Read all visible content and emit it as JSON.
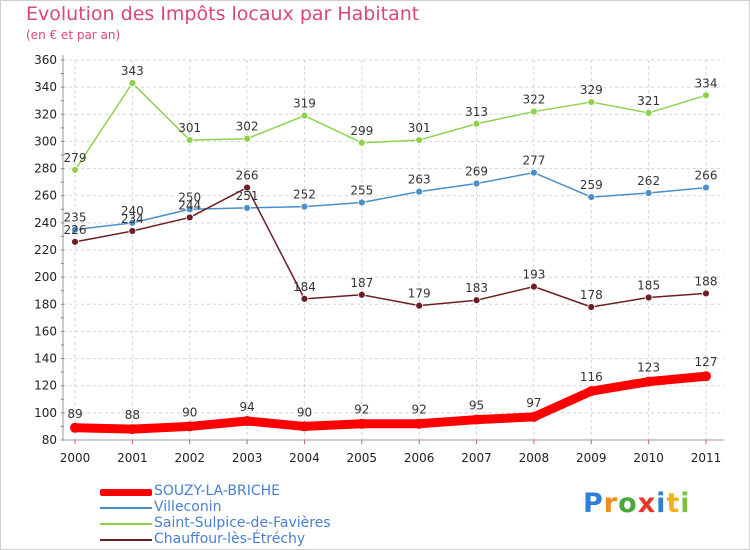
{
  "chart_data": {
    "type": "line",
    "title": "Evolution des Impôts locaux par Habitant",
    "subtitle": "(en € et par an)",
    "x": [
      "2000",
      "2001",
      "2002",
      "2003",
      "2004",
      "2005",
      "2006",
      "2007",
      "2008",
      "2009",
      "2010",
      "2011"
    ],
    "y_ticks": [
      "80",
      "100",
      "120",
      "140",
      "160",
      "180",
      "200",
      "220",
      "240",
      "260",
      "280",
      "300",
      "320",
      "340",
      "360"
    ],
    "ylim": [
      80,
      360
    ],
    "grid": true,
    "legend_position": "bottom-left",
    "series": [
      {
        "name": "SOUZY-LA-BRICHE",
        "color": "#ff0000",
        "values": [
          89,
          88,
          90,
          94,
          90,
          92,
          92,
          95,
          97,
          116,
          123,
          127
        ],
        "labels": [
          "89",
          "88",
          "90",
          "94",
          "90",
          "92",
          "92",
          "95",
          "97",
          "116",
          "123",
          "127"
        ]
      },
      {
        "name": "Villeconin",
        "color": "#4a90c8",
        "values": [
          235,
          240,
          250,
          251,
          252,
          255,
          263,
          269,
          277,
          259,
          262,
          266
        ],
        "labels": [
          "235",
          "240",
          "250",
          "251",
          "252",
          "255",
          "263",
          "269",
          "277",
          "259",
          "262",
          "266"
        ]
      },
      {
        "name": "Saint-Sulpice-de-Favières",
        "color": "#8fd14f",
        "values": [
          279,
          343,
          301,
          302,
          319,
          299,
          301,
          313,
          322,
          329,
          321,
          334
        ],
        "labels": [
          "279",
          "343",
          "301",
          "302",
          "319",
          "299",
          "301",
          "313",
          "322",
          "329",
          "321",
          "334"
        ]
      },
      {
        "name": "Chauffour-lès-Étréchy",
        "color": "#6b1f24",
        "values": [
          226,
          234,
          244,
          266,
          184,
          187,
          179,
          183,
          193,
          178,
          185,
          188
        ],
        "labels": [
          "226",
          "234",
          "244",
          "266",
          "184",
          "187",
          "179",
          "183",
          "193",
          "178",
          "185",
          "188"
        ]
      }
    ]
  },
  "logo": {
    "text_parts": [
      "P",
      "r",
      "o",
      "x",
      "i",
      "t",
      "i"
    ],
    "colors": [
      "#2f7fd6",
      "#f08a1c",
      "#4aa83a",
      "#e6372a",
      "#2f7fd6",
      "#f0b21c",
      "#7bc043"
    ]
  }
}
